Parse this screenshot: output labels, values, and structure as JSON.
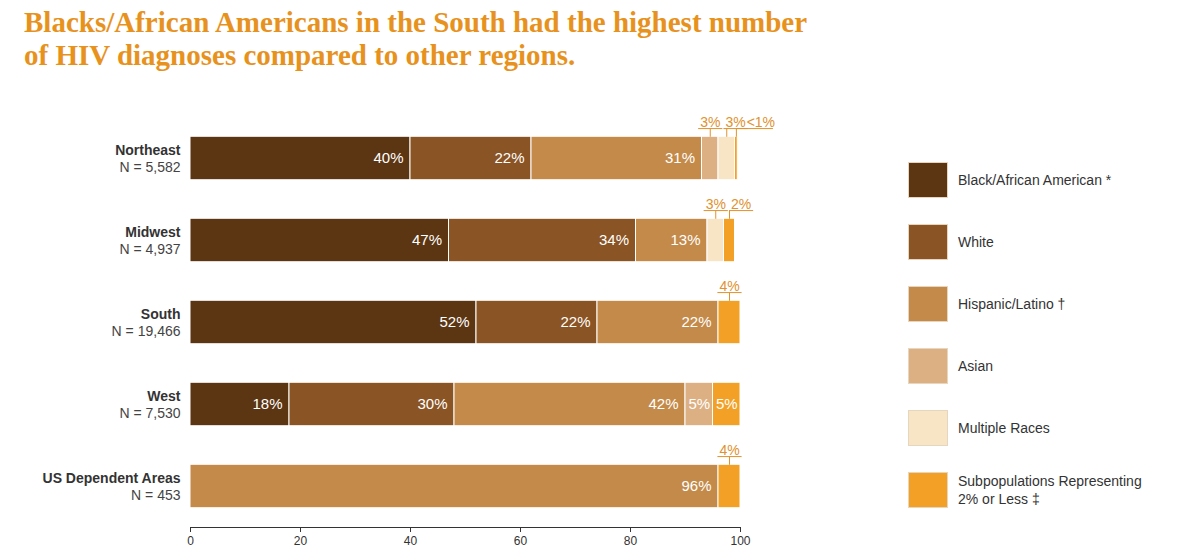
{
  "chart_data": {
    "type": "bar",
    "title": "Blacks/African Americans in the South had the highest number of HIV diagnoses compared to other regions.",
    "orientation": "horizontal",
    "stacked": true,
    "data_labels": true,
    "legend": "right",
    "tick_labels": "x",
    "categories": [
      "Northeast",
      "Midwest",
      "South",
      "West",
      "US Dependent Areas"
    ],
    "category_labels": [
      "N = 5,582",
      "N = 4,937",
      "N = 19,466",
      "N = 7,530",
      "N = 453"
    ],
    "xlim": [
      0,
      100
    ],
    "xticks": [
      0,
      20,
      40,
      60,
      80,
      100
    ],
    "series": [
      {
        "name": "Black/African American *",
        "color": "#5c3612",
        "values": [
          40,
          47,
          52,
          18,
          null
        ],
        "value_labels": [
          "40%",
          "47%",
          "52%",
          "18%",
          null
        ]
      },
      {
        "name": "White",
        "color": "#8a5424",
        "values": [
          22,
          34,
          22,
          30,
          null
        ],
        "value_labels": [
          "22%",
          "34%",
          "22%",
          "30%",
          null
        ]
      },
      {
        "name": "Hispanic/Latino †",
        "color": "#c48a4a",
        "values": [
          31,
          13,
          22,
          42,
          96
        ],
        "value_labels": [
          "31%",
          "13%",
          "22%",
          "42%",
          "96%"
        ]
      },
      {
        "name": "Asian",
        "color": "#ddb084",
        "values": [
          3,
          null,
          null,
          5,
          null
        ],
        "value_labels": [
          "3%",
          null,
          null,
          "5%",
          null
        ]
      },
      {
        "name": "Multiple Races",
        "color": "#f8e5c6",
        "values": [
          3,
          3,
          null,
          null,
          null
        ],
        "value_labels": [
          "3%",
          "3%",
          null,
          null,
          null
        ]
      },
      {
        "name": "Subpopulations Representing 2% or Less ‡",
        "color": "#f2a126",
        "values": [
          0.5,
          2,
          4,
          5,
          4
        ],
        "value_labels": [
          "<1%",
          "2%",
          "4%",
          "5%",
          "4%"
        ]
      }
    ]
  }
}
